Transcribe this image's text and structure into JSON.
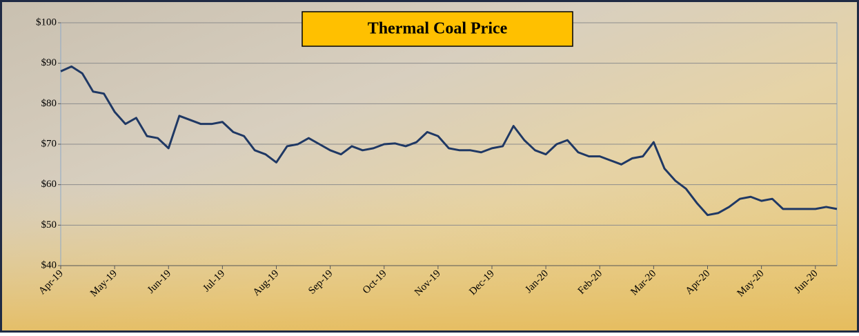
{
  "chart_data": {
    "type": "line",
    "title": "Thermal Coal Price",
    "categories": [
      "Apr-19",
      null,
      null,
      null,
      null,
      "May-19",
      null,
      null,
      null,
      null,
      "Jun-19",
      null,
      null,
      null,
      null,
      "Jul-19",
      null,
      null,
      null,
      null,
      "Aug-19",
      null,
      null,
      null,
      null,
      "Sep-19",
      null,
      null,
      null,
      null,
      "Oct-19",
      null,
      null,
      null,
      null,
      "Nov-19",
      null,
      null,
      null,
      null,
      "Dec-19",
      null,
      null,
      null,
      null,
      "Jan-20",
      null,
      null,
      null,
      null,
      "Feb-20",
      null,
      null,
      null,
      null,
      "Mar-20",
      null,
      null,
      null,
      null,
      "Apr-20",
      null,
      null,
      null,
      null,
      "May-20",
      null,
      null,
      null,
      null,
      "Jun-20",
      null,
      null
    ],
    "values": [
      88,
      89.2,
      87.5,
      83,
      82.5,
      78,
      75,
      76.5,
      72,
      71.5,
      69,
      77,
      76,
      75,
      75,
      75.5,
      73,
      72,
      68.5,
      67.5,
      65.5,
      69.5,
      70,
      71.5,
      70,
      68.5,
      67.5,
      69.5,
      68.5,
      69,
      70,
      70.2,
      69.5,
      70.5,
      73,
      72,
      69,
      68.5,
      68.5,
      68,
      69,
      69.5,
      74.5,
      71,
      68.5,
      67.5,
      70,
      71,
      68,
      67,
      67,
      66,
      65,
      66.5,
      67,
      70.5,
      64,
      61,
      59,
      55.5,
      52.5,
      53,
      54.5,
      56.5,
      57,
      56,
      56.5,
      54,
      54,
      54,
      54,
      54.5,
      54
    ],
    "color": "#1f3864",
    "ylim": [
      40,
      100
    ],
    "yticks": [
      {
        "value": 40,
        "label": "$40"
      },
      {
        "value": 50,
        "label": "$50"
      },
      {
        "value": 60,
        "label": "$60"
      },
      {
        "value": 70,
        "label": "$70"
      },
      {
        "value": 80,
        "label": "$80"
      },
      {
        "value": 90,
        "label": "$90"
      },
      {
        "value": 100,
        "label": "$100"
      }
    ],
    "grid": true
  }
}
